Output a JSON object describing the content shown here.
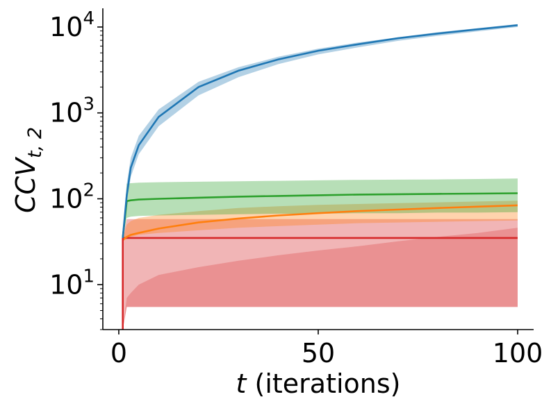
{
  "chart_data": {
    "type": "line",
    "xlabel_var": "t",
    "xlabel_rest": " (iterations)",
    "ylabel_base": "CCV",
    "ylabel_sub": "t, 2",
    "xlim": [
      -4,
      104
    ],
    "ylim": [
      3,
      16500
    ],
    "yscale": "log",
    "grid": false,
    "legend": "none",
    "x_ticks": [
      0,
      50,
      100
    ],
    "y_ticks": [
      {
        "value": 10,
        "base": "10",
        "exp": "1"
      },
      {
        "value": 100,
        "base": "10",
        "exp": "2"
      },
      {
        "value": 1000,
        "base": "10",
        "exp": "3"
      },
      {
        "value": 10000,
        "base": "10",
        "exp": "4"
      }
    ],
    "x": [
      1,
      2,
      3,
      5,
      10,
      20,
      30,
      40,
      50,
      60,
      70,
      80,
      90,
      100
    ],
    "series": [
      {
        "color": "#1f77b4",
        "values": [
          35,
          110,
          230,
          420,
          900,
          2000,
          3100,
          4200,
          5300,
          6300,
          7400,
          8400,
          9400,
          10500
        ],
        "lower": [
          35,
          90,
          180,
          330,
          700,
          1600,
          2600,
          3700,
          4800,
          5800,
          6900,
          7900,
          8900,
          10000
        ],
        "upper": [
          35,
          150,
          300,
          540,
          1100,
          2300,
          3400,
          4500,
          5600,
          6600,
          7600,
          8700,
          9700,
          10800
        ]
      },
      {
        "color": "#2ca02c",
        "values": [
          35,
          94,
          96,
          98,
          100,
          103,
          106,
          108,
          110,
          112,
          113,
          114,
          115,
          116
        ],
        "lower": [
          35,
          60,
          62,
          63,
          64,
          65,
          66,
          67,
          67,
          68,
          68,
          69,
          69,
          70
        ],
        "upper": [
          35,
          150,
          152,
          154,
          156,
          158,
          160,
          162,
          164,
          166,
          167,
          168,
          170,
          172
        ]
      },
      {
        "color": "#ff7f0e",
        "values": [
          33,
          36,
          38,
          40,
          45,
          53,
          59,
          64,
          68,
          72,
          75,
          78,
          81,
          84
        ],
        "lower": [
          33,
          34,
          36,
          38,
          40,
          43,
          46,
          48,
          50,
          52,
          53,
          54,
          55,
          56
        ],
        "upper": [
          33,
          50,
          55,
          60,
          65,
          72,
          78,
          82,
          85,
          87,
          89,
          91,
          93,
          95
        ]
      },
      {
        "color": "#d62728",
        "values": [
          35,
          35,
          35,
          35,
          35,
          35,
          35,
          35,
          35,
          35,
          35,
          35,
          35,
          35
        ],
        "lower": [
          3,
          5.5,
          5.5,
          5.5,
          5.5,
          5.5,
          5.5,
          5.5,
          5.5,
          5.5,
          5.5,
          5.5,
          5.5,
          5.5
        ],
        "upper": [
          35,
          58,
          58,
          58,
          58,
          58,
          58,
          58,
          58,
          58,
          58,
          58,
          58,
          58
        ],
        "inner_upper": [
          3,
          7,
          8,
          10,
          13,
          16,
          19,
          22,
          25,
          28,
          32,
          36,
          40,
          46
        ]
      }
    ]
  }
}
